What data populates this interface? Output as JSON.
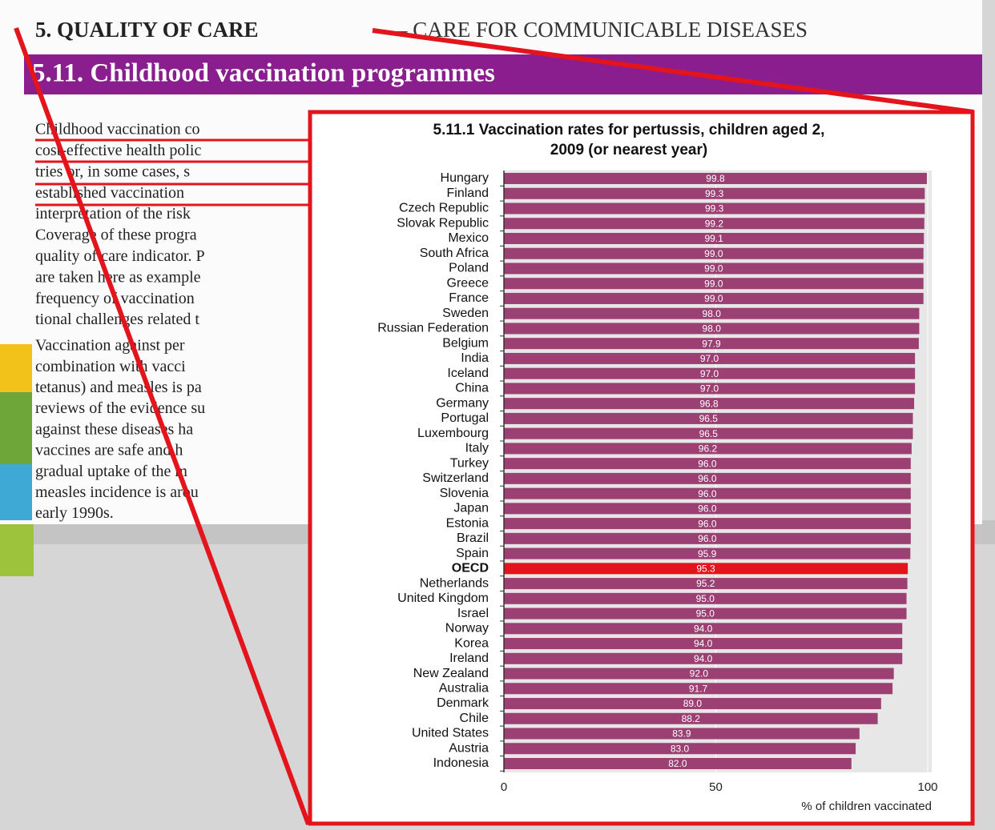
{
  "document": {
    "section_header": "5. QUALITY OF CARE",
    "section_subheader": "– CARE FOR COMMUNICABLE DISEASES",
    "banner_title": "5.11. Childhood vaccination programmes",
    "paragraph_lines": [
      "Childhood vaccination co",
      "cost-effective health polic",
      "tries or, in some cases, s",
      "established vaccination",
      "interpretation of the risk",
      "Coverage of these progra",
      "quality of care indicator. P",
      "are taken here as example",
      "frequency of vaccination",
      "tional challenges related t"
    ],
    "paragraph2_lines": [
      "Vaccination against per",
      "combination with vacci",
      "tetanus) and measles is pa",
      "reviews of the evidence su",
      "against these diseases ha",
      "vaccines are safe and h",
      "gradual uptake of the m",
      "measles incidence is arou",
      "early 1990s."
    ]
  },
  "chart_data": {
    "type": "barh",
    "title": "5.11.1 Vaccination rates for pertussis, children aged 2,",
    "subtitle": "2009 (or nearest year)",
    "xlabel": "% of children vaccinated",
    "categories": [
      "Hungary",
      "Finland",
      "Czech Republic",
      "Slovak Republic",
      "Mexico",
      "South Africa",
      "Poland",
      "Greece",
      "France",
      "Sweden",
      "Russian Federation",
      "Belgium",
      "India",
      "Iceland",
      "China",
      "Germany",
      "Portugal",
      "Luxembourg",
      "Italy",
      "Turkey",
      "Switzerland",
      "Slovenia",
      "Japan",
      "Estonia",
      "Brazil",
      "Spain",
      "OECD",
      "Netherlands",
      "United Kingdom",
      "Israel",
      "Norway",
      "Korea",
      "Ireland",
      "New Zealand",
      "Australia",
      "Denmark",
      "Chile",
      "United States",
      "Austria",
      "Indonesia"
    ],
    "values": [
      99.8,
      99.3,
      99.3,
      99.2,
      99.1,
      99.0,
      99.0,
      99.0,
      99.0,
      98.0,
      98.0,
      97.9,
      97.0,
      97.0,
      97.0,
      96.8,
      96.5,
      96.5,
      96.2,
      96.0,
      96.0,
      96.0,
      96.0,
      96.0,
      96.0,
      95.9,
      95.3,
      95.2,
      95.0,
      95.0,
      94.0,
      94.0,
      94.0,
      92.0,
      91.7,
      89.0,
      88.2,
      83.9,
      83.0,
      82.0
    ],
    "value_labels": [
      "99.8",
      "99.3",
      "99.3",
      "99.2",
      "99.1",
      "99.0",
      "99.0",
      "99.0",
      "99.0",
      "98.0",
      "98.0",
      "97.9",
      "97.0",
      "97.0",
      "97.0",
      "96.8",
      "96.5",
      "96.5",
      "96.2",
      "96.0",
      "96.0",
      "96.0",
      "96.0",
      "96.0",
      "96.0",
      "95.9",
      "95.3",
      "95.2",
      "95.0",
      "95.0",
      "94.0",
      "94.0",
      "94.0",
      "92.0",
      "91.7",
      "89.0",
      "88.2",
      "83.9",
      "83.0",
      "82.0"
    ],
    "colors": [
      "#9c3f73",
      "#9c3f73",
      "#9c3f73",
      "#9c3f73",
      "#9c3f73",
      "#9c3f73",
      "#9c3f73",
      "#9c3f73",
      "#9c3f73",
      "#9c3f73",
      "#9c3f73",
      "#9c3f73",
      "#9c3f73",
      "#9c3f73",
      "#9c3f73",
      "#9c3f73",
      "#9c3f73",
      "#9c3f73",
      "#9c3f73",
      "#9c3f73",
      "#9c3f73",
      "#9c3f73",
      "#9c3f73",
      "#9c3f73",
      "#9c3f73",
      "#9c3f73",
      "#e3141b",
      "#9c3f73",
      "#9c3f73",
      "#9c3f73",
      "#9c3f73",
      "#9c3f73",
      "#9c3f73",
      "#9c3f73",
      "#9c3f73",
      "#9c3f73",
      "#9c3f73",
      "#9c3f73",
      "#9c3f73",
      "#9c3f73"
    ],
    "xlim": [
      0,
      100
    ],
    "xticks": [
      0,
      50,
      100
    ]
  }
}
